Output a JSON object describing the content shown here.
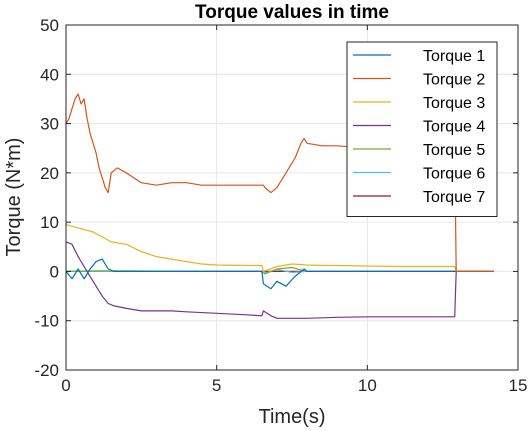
{
  "chart_data": {
    "type": "line",
    "title": "Torque values in time",
    "xlabel": "Time(s)",
    "ylabel": "Torque (N*m)",
    "xlim": [
      0,
      15
    ],
    "ylim": [
      -20,
      50
    ],
    "xticks": [
      0,
      5,
      10,
      15
    ],
    "yticks": [
      -20,
      -10,
      0,
      10,
      20,
      30,
      40,
      50
    ],
    "xtick_labels": [
      "0",
      "5",
      "10",
      "15"
    ],
    "ytick_labels": [
      "-20",
      "-10",
      "0",
      "10",
      "20",
      "30",
      "40",
      "50"
    ],
    "grid": true,
    "legend_position": "top-right",
    "series": [
      {
        "name": "Torque 1",
        "color": "#0072BD",
        "x": [
          0,
          0.2,
          0.4,
          0.6,
          0.8,
          1.0,
          1.2,
          1.4,
          1.6,
          2.0,
          3.0,
          4.0,
          5.0,
          6.0,
          6.5,
          6.55,
          6.8,
          7.0,
          7.3,
          7.6,
          7.9,
          8.0,
          9.0,
          10.0,
          11.0,
          12.0,
          12.9,
          14.2
        ],
        "y": [
          0,
          -1.5,
          0.5,
          -1.5,
          0.5,
          2.0,
          2.5,
          0.5,
          0,
          0,
          0,
          0,
          0,
          0,
          0,
          -2.5,
          -3.5,
          -2.0,
          -3.0,
          -1.0,
          0.5,
          0,
          0,
          0,
          0,
          0,
          0,
          0
        ]
      },
      {
        "name": "Torque 2",
        "color": "#D95319",
        "x": [
          0,
          0.1,
          0.2,
          0.3,
          0.4,
          0.5,
          0.6,
          0.7,
          0.8,
          0.9,
          1.0,
          1.1,
          1.2,
          1.3,
          1.4,
          1.5,
          1.7,
          2.0,
          2.5,
          3.0,
          3.5,
          4.0,
          4.5,
          5.0,
          5.5,
          6.0,
          6.5,
          6.55,
          6.6,
          6.8,
          7.0,
          7.2,
          7.4,
          7.6,
          7.8,
          7.9,
          8.0,
          8.5,
          9.0,
          10.0,
          11.0,
          12.0,
          12.5,
          12.9,
          12.95,
          14.2
        ],
        "y": [
          30,
          31,
          33,
          35,
          36,
          34,
          35,
          31,
          28,
          26,
          24,
          21,
          19,
          17,
          16,
          20,
          21,
          20,
          18,
          17.5,
          18,
          18,
          17.5,
          17.5,
          17.5,
          17.5,
          17.5,
          17.5,
          17,
          16,
          17,
          19,
          21,
          23,
          26,
          27,
          26,
          25.5,
          25.5,
          25,
          25,
          25,
          25,
          25,
          0,
          0
        ]
      },
      {
        "name": "Torque 3",
        "color": "#EDB120",
        "x": [
          0,
          0.3,
          0.6,
          0.9,
          1.2,
          1.5,
          2.0,
          2.5,
          3.0,
          3.5,
          4.0,
          4.5,
          5.0,
          6.0,
          6.5,
          6.55,
          7.0,
          7.5,
          8.0,
          8.5,
          9.0,
          10.0,
          11.0,
          12.0,
          12.9,
          12.95,
          14.2
        ],
        "y": [
          9.5,
          9,
          8.5,
          8,
          7,
          6,
          5.5,
          4,
          3,
          2.5,
          2,
          1.5,
          1.3,
          1.2,
          1.2,
          0,
          1.0,
          1.5,
          1.3,
          1.2,
          1.2,
          1.1,
          1.0,
          1.0,
          1.0,
          0,
          0
        ]
      },
      {
        "name": "Torque 4",
        "color": "#7E2F8E",
        "x": [
          0,
          0.2,
          0.4,
          0.6,
          0.8,
          1.0,
          1.2,
          1.4,
          1.6,
          2.0,
          2.5,
          3.0,
          3.5,
          4.0,
          5.0,
          6.0,
          6.5,
          6.55,
          6.8,
          7.0,
          7.5,
          8.0,
          9.0,
          10.0,
          11.0,
          12.0,
          12.9,
          12.95,
          14.2
        ],
        "y": [
          6,
          5.5,
          3,
          1,
          -1,
          -3,
          -5,
          -6.5,
          -7,
          -7.5,
          -8,
          -8,
          -8,
          -8.2,
          -8.5,
          -8.8,
          -9,
          -8,
          -9,
          -9.5,
          -9.5,
          -9.5,
          -9.3,
          -9.2,
          -9.2,
          -9.2,
          -9.2,
          0,
          0
        ]
      },
      {
        "name": "Torque 5",
        "color": "#77AC30",
        "x": [
          0,
          1.0,
          2.0,
          4.0,
          6.0,
          6.5,
          6.6,
          7.0,
          7.5,
          7.8,
          8.0,
          9.0,
          12.9,
          14.2
        ],
        "y": [
          0,
          0.1,
          0.1,
          0,
          0,
          0,
          -0.5,
          0.5,
          0.8,
          0.3,
          0,
          0,
          0,
          0
        ]
      },
      {
        "name": "Torque 6",
        "color": "#4DBEEE",
        "x": [
          0,
          1.0,
          3.0,
          6.0,
          6.5,
          6.6,
          7.0,
          7.5,
          8.0,
          10.0,
          12.9,
          14.2
        ],
        "y": [
          0,
          0,
          0,
          0,
          0,
          -0.3,
          0.4,
          -0.2,
          0,
          0,
          0,
          0
        ]
      },
      {
        "name": "Torque 7",
        "color": "#A2142F",
        "x": [
          0,
          2.0,
          6.0,
          8.0,
          12.9,
          14.2
        ],
        "y": [
          0,
          0,
          0,
          0,
          0,
          0
        ]
      }
    ]
  }
}
